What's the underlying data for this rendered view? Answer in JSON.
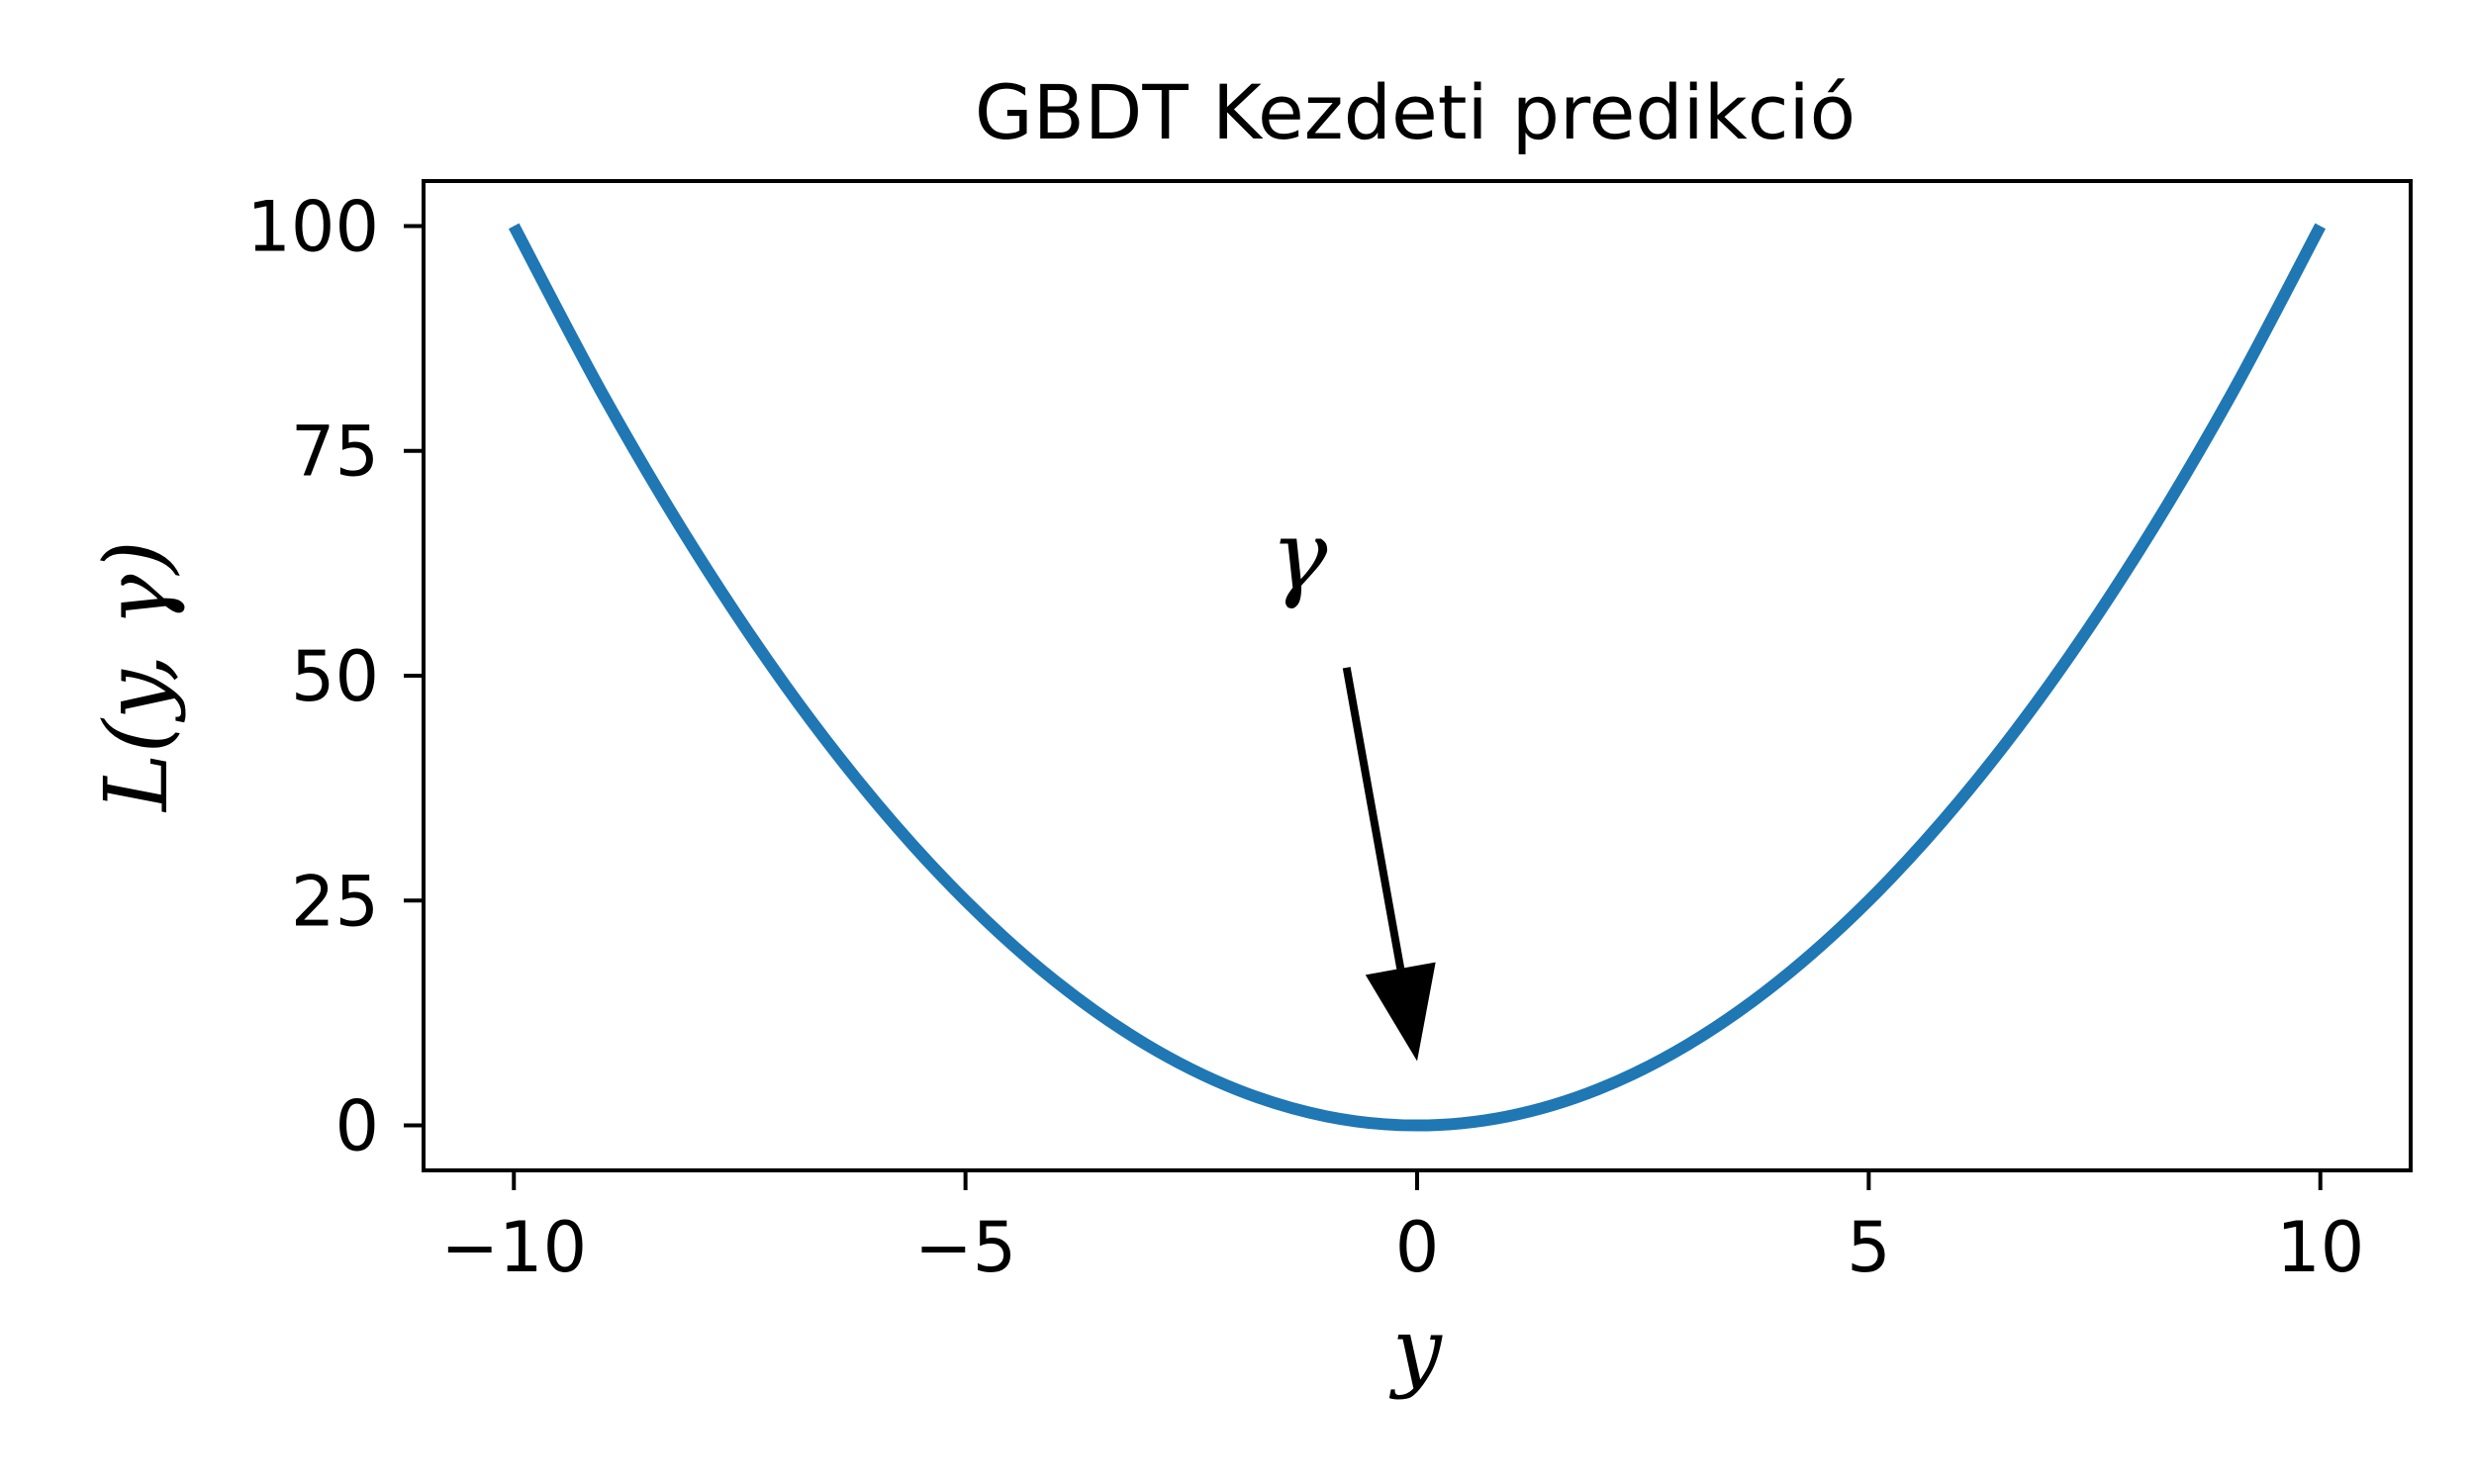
{
  "chart_data": {
    "type": "line",
    "title": "GBDT Kezdeti predikció",
    "xlabel": "y",
    "ylabel": "L(y, γ)",
    "xlim": [
      -11,
      11
    ],
    "ylim": [
      -5,
      105
    ],
    "xticks": [
      -10,
      -5,
      0,
      5,
      10
    ],
    "xtick_labels": [
      "−10",
      "−5",
      "0",
      "5",
      "10"
    ],
    "yticks": [
      0,
      25,
      50,
      75,
      100
    ],
    "ytick_labels": [
      "0",
      "25",
      "50",
      "75",
      "100"
    ],
    "grid": false,
    "series": [
      {
        "color": "#1f77b4",
        "x": [
          -10,
          -9,
          -8,
          -7,
          -6,
          -5,
          -4,
          -3,
          -2,
          -1,
          0,
          1,
          2,
          3,
          4,
          5,
          6,
          7,
          8,
          9,
          10
        ],
        "y": [
          100,
          81,
          64,
          49,
          36,
          25,
          16,
          9,
          4,
          1,
          0,
          1,
          4,
          9,
          16,
          25,
          36,
          49,
          64,
          81,
          100
        ]
      }
    ],
    "annotation": {
      "text": "γ",
      "point": [
        0,
        0
      ],
      "text_anchor": [
        -1,
        52
      ]
    }
  }
}
